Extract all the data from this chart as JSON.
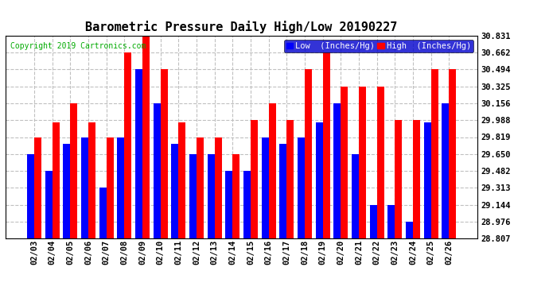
{
  "title": "Barometric Pressure Daily High/Low 20190227",
  "copyright": "Copyright 2019 Cartronics.com",
  "dates": [
    "02/03",
    "02/04",
    "02/05",
    "02/06",
    "02/07",
    "02/08",
    "02/09",
    "02/10",
    "02/11",
    "02/12",
    "02/13",
    "02/14",
    "02/15",
    "02/16",
    "02/17",
    "02/18",
    "02/19",
    "02/20",
    "02/21",
    "02/22",
    "02/23",
    "02/24",
    "02/25",
    "02/26"
  ],
  "low": [
    29.65,
    29.482,
    29.75,
    29.819,
    29.313,
    29.819,
    30.494,
    30.156,
    29.75,
    29.65,
    29.65,
    29.482,
    29.482,
    29.819,
    29.75,
    29.819,
    29.963,
    30.156,
    29.65,
    29.144,
    29.144,
    28.976,
    29.963,
    30.156
  ],
  "high": [
    29.819,
    29.963,
    30.156,
    29.963,
    29.819,
    30.662,
    30.831,
    30.494,
    29.963,
    29.819,
    29.819,
    29.65,
    29.988,
    30.156,
    29.988,
    30.494,
    30.662,
    30.325,
    30.325,
    30.325,
    29.988,
    29.988,
    30.494,
    30.494
  ],
  "low_color": "#0000ff",
  "high_color": "#ff0000",
  "bg_color": "#ffffff",
  "grid_color": "#c0c0c0",
  "ylim_min": 28.807,
  "ylim_max": 30.831,
  "yticks": [
    28.807,
    28.976,
    29.144,
    29.313,
    29.482,
    29.65,
    29.819,
    29.988,
    30.156,
    30.325,
    30.494,
    30.662,
    30.831
  ],
  "legend_low_label": "Low  (Inches/Hg)",
  "legend_high_label": "High  (Inches/Hg)"
}
